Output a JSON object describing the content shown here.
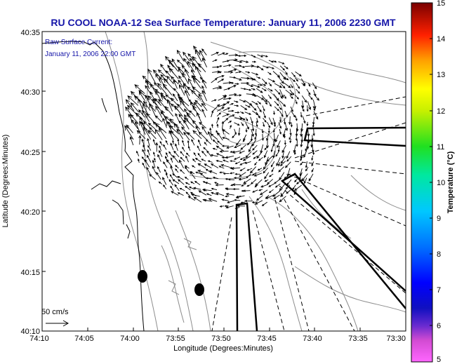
{
  "title": "RU COOL  NOAA-12  Sea Surface Temperature:  January 11, 2006 2230 GMT",
  "annotation": {
    "line1": "Raw Surface Current:",
    "line2": "January 11, 2006 22:00 GMT"
  },
  "scale_label": "50 cm/s",
  "colors": {
    "title_text": "#1515a8",
    "map_border": "#000000",
    "contour": "#8c8c8c",
    "vector": "#000000"
  },
  "map": {
    "x_axis_label": "Longitude (Degrees:Minutes)",
    "y_axis_label": "Latitude (Degrees:Minutes)",
    "x_ticks": [
      "74:10",
      "74:05",
      "74:00",
      "73:55",
      "73:50",
      "73:45",
      "73:40",
      "73:35",
      "73:30"
    ],
    "y_ticks": [
      "40:35",
      "40:30",
      "40:25",
      "40:20",
      "40:15",
      "40:10"
    ]
  },
  "colorbar": {
    "label": "Temperature (°C)",
    "min": 5,
    "max": 15,
    "ticks": [
      "15",
      "14",
      "13",
      "12",
      "11",
      "10",
      "9",
      "8",
      "7",
      "6",
      "5"
    ]
  }
}
